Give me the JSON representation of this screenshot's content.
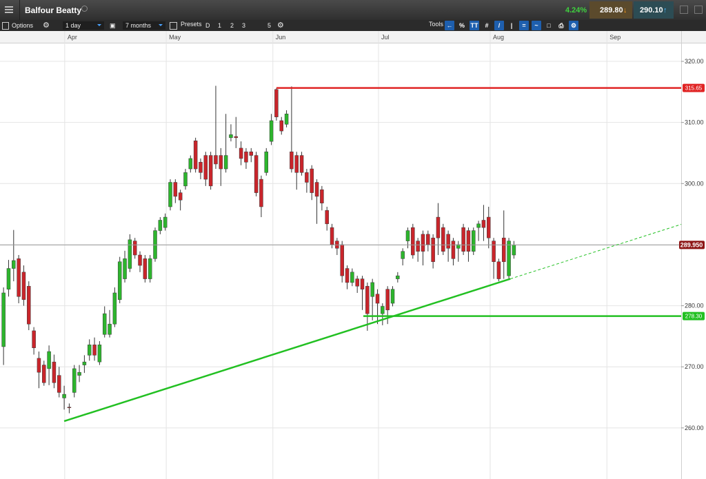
{
  "header": {
    "title": "Balfour Beatty",
    "change": "4.24%",
    "sell": "289.80",
    "buy": "290.10"
  },
  "toolbar": {
    "options": "Options",
    "interval": "1 day",
    "range": "7 months",
    "presets": "Presets",
    "preset_buttons": [
      "D",
      "1",
      "2",
      "3",
      "5"
    ],
    "tools": "Tools",
    "tool_labels": [
      "%",
      "TT"
    ]
  },
  "chart_data": {
    "type": "candlestick",
    "up_color": "#2db52d",
    "down_color": "#c9252b",
    "grid": true,
    "ylim": [
      252.2,
      323.05
    ],
    "yticks": [
      {
        "value": 260,
        "label": "260.00"
      },
      {
        "value": 270,
        "label": "270.00"
      },
      {
        "value": 280,
        "label": "280.00"
      },
      {
        "value": 290,
        "label": "290.00"
      },
      {
        "value": 300,
        "label": "300.00"
      },
      {
        "value": 310,
        "label": "310.00"
      },
      {
        "value": 320,
        "label": "320.00"
      }
    ],
    "xlim": [
      -0.7,
      134.1
    ],
    "xticks": [
      {
        "value": 12.1,
        "label": "Apr"
      },
      {
        "value": 32.2,
        "label": "May"
      },
      {
        "value": 53.3,
        "label": "Jun"
      },
      {
        "value": 74.2,
        "label": "Jul"
      },
      {
        "value": 96.3,
        "label": "Aug"
      },
      {
        "value": 119.4,
        "label": "Sep"
      }
    ],
    "open": [
      273.3,
      282.7,
      286.1,
      287.7,
      285.5,
      283.2,
      275.9,
      271.4,
      270.3,
      269.7,
      270.8,
      268.6,
      264.9,
      263.4,
      265.8,
      268.6,
      270.3,
      271.9,
      273.6,
      270.8,
      275.3,
      275.3,
      277.0,
      281.0,
      284.4,
      286.1,
      290.6,
      288.3,
      287.7,
      284.4,
      287.7,
      292.3,
      292.8,
      296.2,
      300.2,
      298.5,
      299.6,
      302.4,
      307.0,
      303.5,
      304.6,
      304.6,
      304.6,
      304.6,
      302.4,
      307.5,
      307.7,
      305.8,
      305.2,
      305.2,
      304.6,
      300.7,
      301.8,
      306.9,
      315.4,
      310.3,
      309.7,
      305.2,
      304.6,
      304.6,
      301.8,
      302.4,
      300.2,
      299.0,
      295.6,
      292.8,
      290.6,
      290.0,
      286.1,
      283.8,
      284.4,
      284.4,
      283.2,
      281.5,
      281.9,
      278.7,
      282.7,
      280.4,
      284.4,
      287.7,
      290.6,
      292.8,
      290.6,
      291.7,
      291.7,
      291.1,
      294.5,
      292.8,
      291.7,
      290.6,
      289.4,
      292.8,
      292.3,
      288.9,
      292.8,
      294.0,
      294.5,
      290.6,
      287.2,
      291.1,
      284.9,
      288.3
    ],
    "high": [
      283.0,
      287.5,
      292.4,
      288.3,
      286.6,
      284.0,
      276.5,
      272.5,
      271.0,
      273.5,
      272.0,
      270.0,
      266.9,
      264.0,
      270.3,
      270.3,
      271.9,
      274.5,
      274.8,
      274.2,
      279.9,
      279.3,
      283.0,
      288.0,
      289.0,
      291.7,
      291.1,
      288.9,
      288.3,
      288.3,
      292.8,
      294.5,
      295.1,
      300.7,
      300.7,
      299.0,
      302.4,
      304.6,
      307.5,
      304.1,
      305.2,
      305.2,
      316.0,
      305.8,
      311.4,
      309.7,
      310.9,
      306.9,
      305.8,
      305.8,
      305.2,
      301.3,
      305.8,
      311.4,
      315.6,
      310.9,
      312.0,
      315.9,
      305.2,
      305.2,
      302.4,
      303.0,
      300.7,
      299.6,
      296.2,
      293.4,
      291.1,
      290.6,
      286.6,
      286.1,
      284.9,
      284.9,
      283.8,
      284.4,
      282.7,
      280.4,
      283.2,
      283.2,
      285.5,
      289.4,
      292.8,
      293.4,
      291.1,
      292.3,
      292.3,
      291.7,
      296.8,
      293.4,
      292.3,
      291.1,
      290.6,
      293.4,
      292.8,
      292.8,
      293.9,
      296.5,
      296.2,
      291.1,
      287.7,
      295.6,
      291.1,
      290.6
    ],
    "low": [
      270.3,
      281.5,
      284.0,
      280.4,
      280.0,
      276.0,
      272.0,
      266.5,
      266.9,
      267.0,
      266.5,
      265.0,
      263.0,
      262.4,
      265.0,
      267.5,
      269.0,
      271.0,
      271.0,
      270.3,
      274.8,
      274.8,
      276.5,
      280.4,
      283.8,
      285.5,
      287.7,
      285.5,
      283.8,
      283.8,
      287.2,
      291.7,
      292.3,
      295.6,
      296.8,
      295.6,
      299.0,
      301.8,
      301.8,
      300.7,
      299.6,
      299.0,
      302.4,
      299.6,
      301.8,
      306.9,
      305.8,
      303.0,
      302.4,
      303.5,
      297.9,
      294.5,
      301.3,
      306.3,
      310.3,
      308.0,
      309.2,
      301.8,
      299.0,
      301.3,
      298.5,
      297.3,
      293.4,
      295.6,
      292.3,
      289.4,
      288.3,
      283.8,
      282.7,
      283.2,
      282.1,
      279.3,
      275.9,
      277.6,
      277.0,
      276.8,
      277.0,
      279.9,
      283.8,
      286.6,
      289.4,
      287.7,
      287.2,
      286.6,
      288.9,
      286.1,
      288.3,
      288.3,
      287.2,
      286.6,
      287.2,
      288.3,
      287.2,
      288.3,
      290.6,
      290.6,
      289.4,
      284.4,
      284.0,
      284.4,
      284.4,
      287.7
    ],
    "close": [
      282.1,
      286.1,
      287.4,
      281.5,
      281.0,
      277.0,
      273.1,
      269.1,
      267.4,
      272.5,
      267.4,
      265.8,
      265.5,
      263.3,
      269.7,
      269.1,
      270.8,
      273.6,
      271.9,
      273.6,
      278.7,
      277.0,
      282.1,
      287.2,
      287.7,
      290.8,
      288.3,
      286.6,
      284.4,
      287.7,
      292.3,
      294.0,
      294.5,
      300.2,
      297.9,
      297.3,
      301.8,
      304.1,
      302.4,
      301.8,
      300.7,
      299.6,
      303.2,
      302.4,
      304.6,
      308.0,
      307.5,
      304.1,
      303.5,
      304.6,
      298.5,
      296.2,
      305.2,
      310.3,
      310.9,
      308.6,
      311.4,
      302.4,
      301.8,
      301.8,
      300.2,
      298.5,
      297.9,
      296.8,
      293.4,
      290.0,
      289.4,
      284.9,
      283.8,
      285.5,
      283.2,
      282.7,
      278.7,
      283.8,
      280.4,
      279.9,
      279.3,
      282.7,
      284.9,
      288.9,
      292.3,
      288.3,
      288.9,
      288.9,
      290.0,
      287.2,
      291.1,
      288.9,
      289.4,
      287.7,
      290.0,
      288.9,
      288.9,
      292.3,
      293.4,
      292.8,
      291.1,
      287.2,
      284.4,
      287.2,
      290.6,
      289.95
    ],
    "levels": [
      {
        "value": 315.65,
        "label": "315.65",
        "color": "#e02424",
        "from": 54
      },
      {
        "value": 278.3,
        "label": "278.30",
        "color": "#22c022",
        "from": 71.2
      }
    ],
    "last_price": {
      "value": 289.95,
      "label": "289.950",
      "color": "#8e1616",
      "line_color": "#9a9a9a"
    },
    "trendline": {
      "x": [
        12,
        100.3
      ],
      "y": [
        261.1,
        284.4
      ],
      "color": "#22c022"
    }
  }
}
